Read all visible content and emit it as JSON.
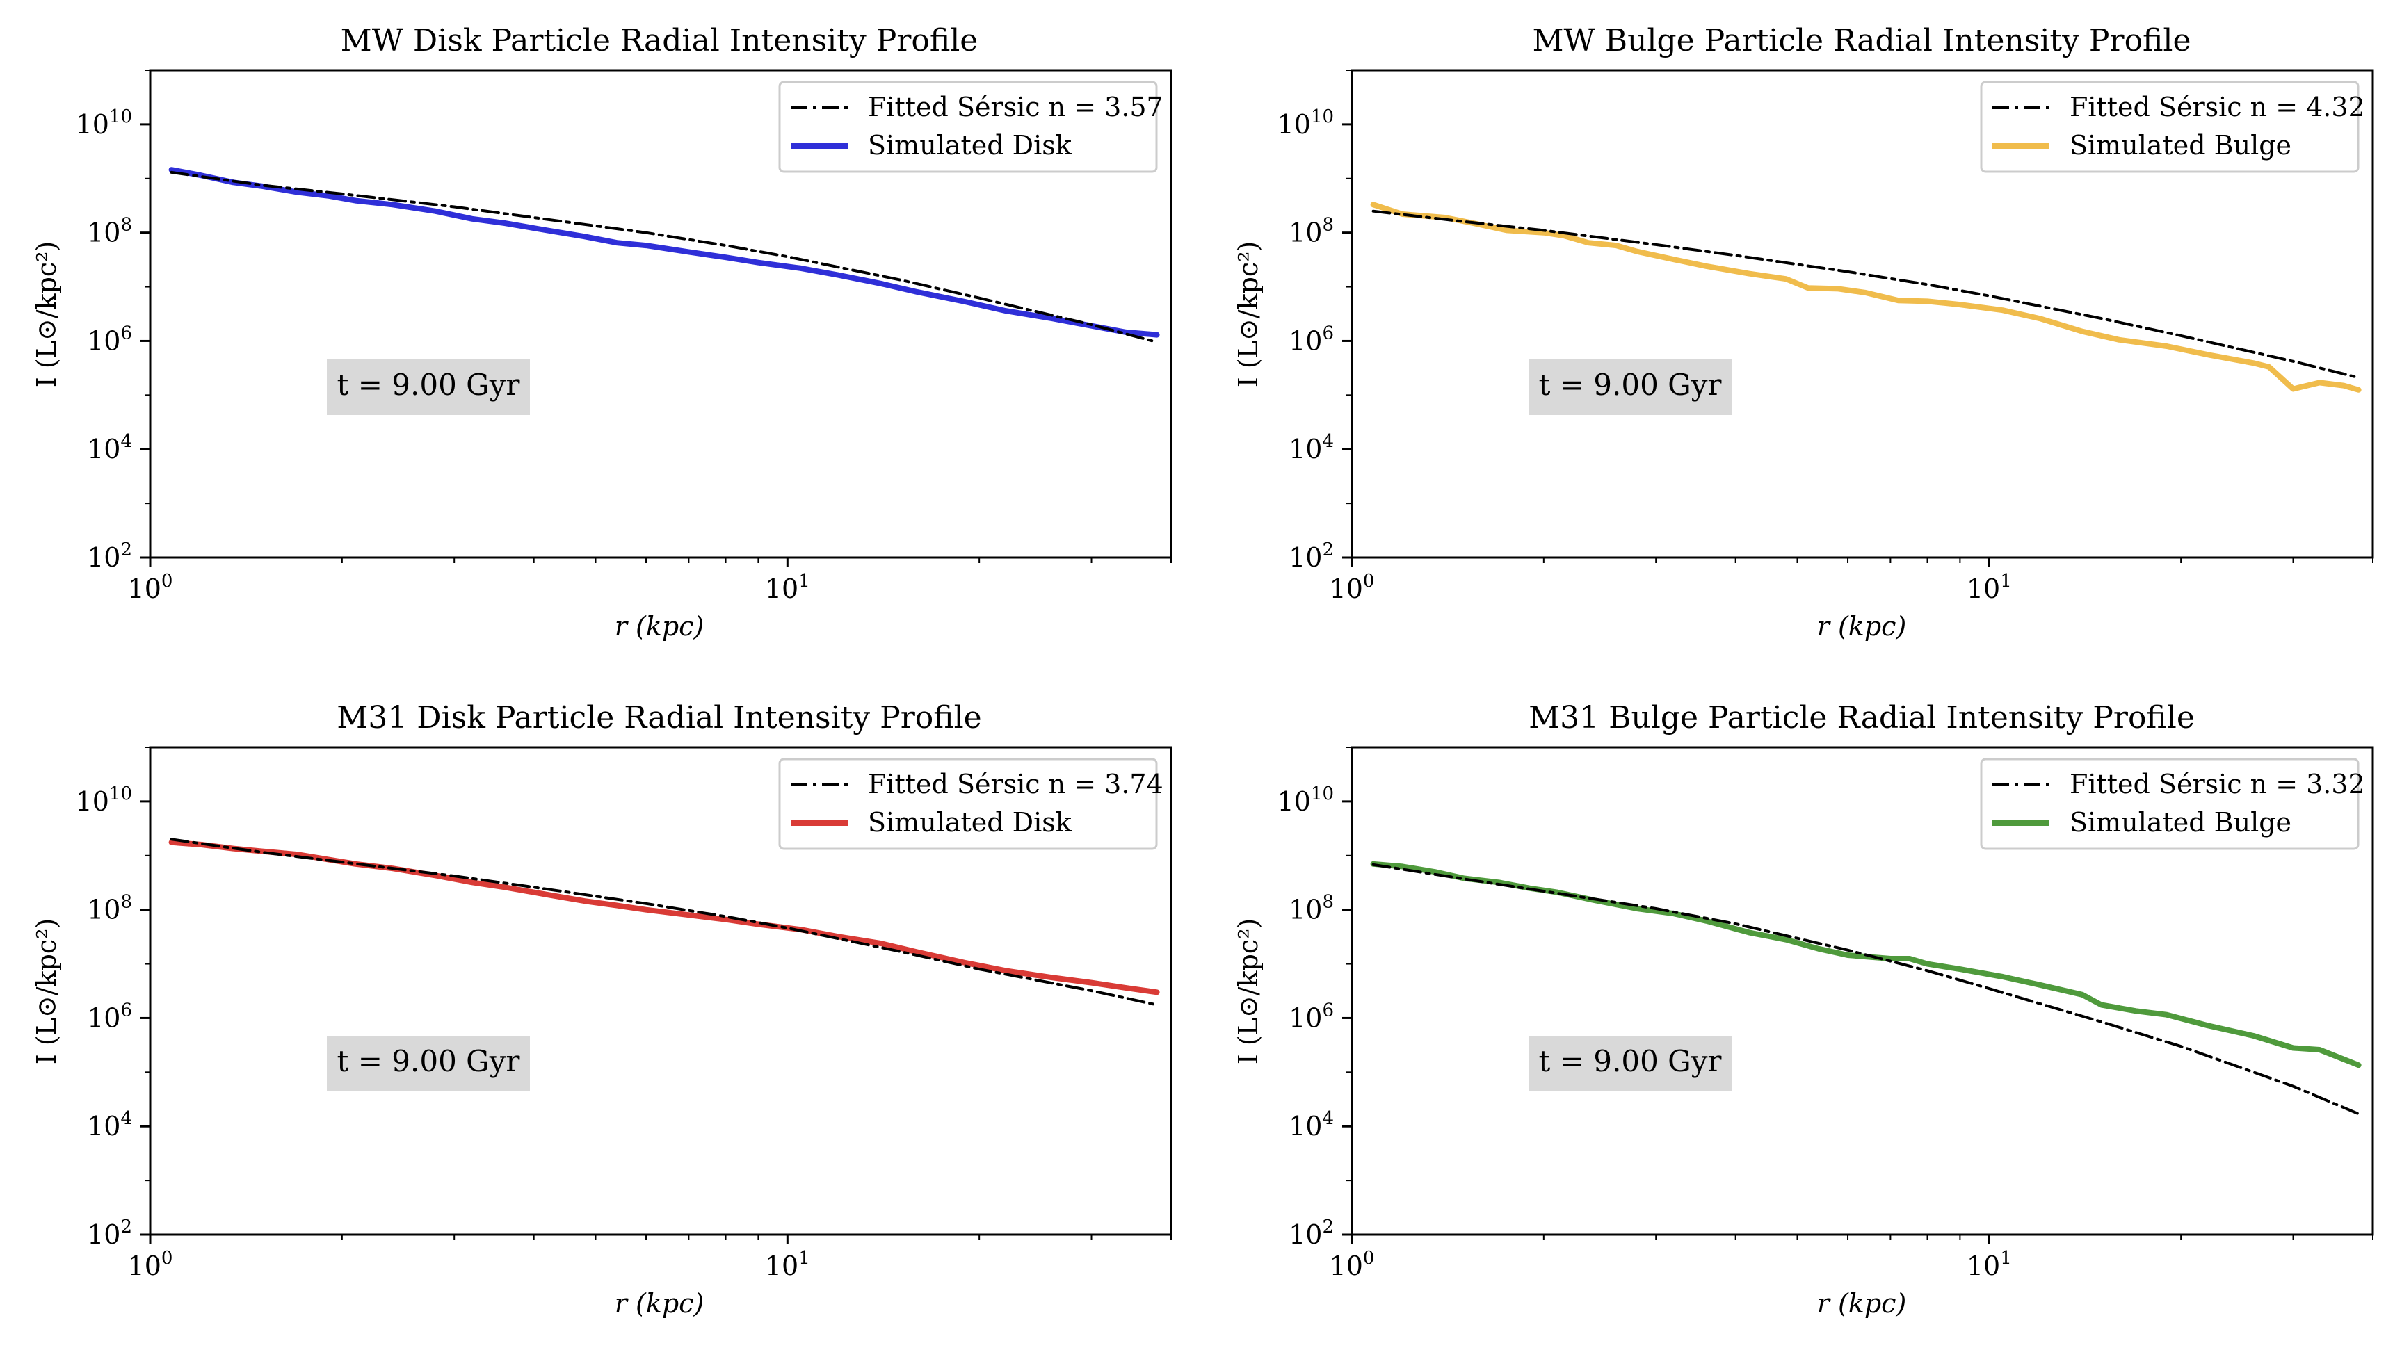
{
  "figure": {
    "background": "#ffffff"
  },
  "chart_data": [
    {
      "type": "line",
      "title": "MW Disk Particle Radial Intensity Profile",
      "xlabel": "r (kpc)",
      "ylabel": "I (L⊙/kpc²)",
      "xscale": "log",
      "yscale": "log",
      "xlim": [
        1,
        40
      ],
      "ylim": [
        100,
        100000000000
      ],
      "xticks": [
        {
          "value": 1,
          "base": "10",
          "exp": "0"
        },
        {
          "value": 10,
          "base": "10",
          "exp": "1"
        }
      ],
      "yticks": [
        {
          "value": 100,
          "base": "10",
          "exp": "2"
        },
        {
          "value": 10000,
          "base": "10",
          "exp": "4"
        },
        {
          "value": 1000000,
          "base": "10",
          "exp": "6"
        },
        {
          "value": 100000000,
          "base": "10",
          "exp": "8"
        },
        {
          "value": 10000000000,
          "base": "10",
          "exp": "10"
        }
      ],
      "grid": false,
      "legend_position": "top-right",
      "annotation": "t = 9.00 Gyr",
      "series": [
        {
          "name": "Fitted Sérsic n = 3.57",
          "style": "dashdot",
          "color": "#000000",
          "x": [
            1.08,
            1.5,
            2,
            3,
            4,
            6,
            8,
            10,
            15,
            20,
            30,
            38
          ],
          "y": [
            1300000000.0,
            750000000.0,
            520000000.0,
            300000000.0,
            190000000.0,
            100000000.0,
            58000000.0,
            36000000.0,
            13500000.0,
            6200000.0,
            2000000.0,
            950000.0
          ]
        },
        {
          "name": "Simulated Disk",
          "style": "solid",
          "color": "#2f2fd8",
          "x": [
            1.08,
            1.2,
            1.35,
            1.5,
            1.7,
            1.9,
            2.1,
            2.4,
            2.8,
            3.2,
            3.6,
            4.2,
            4.8,
            5.4,
            6.0,
            7.0,
            8.0,
            9.0,
            10.5,
            12,
            14,
            16,
            19,
            22,
            26,
            30,
            34,
            38
          ],
          "y": [
            1450000000.0,
            1150000000.0,
            850000000.0,
            720000000.0,
            560000000.0,
            480000000.0,
            390000000.0,
            330000000.0,
            250000000.0,
            180000000.0,
            150000000.0,
            110000000.0,
            85000000.0,
            65000000.0,
            58000000.0,
            44000000.0,
            35000000.0,
            28000000.0,
            22000000.0,
            16500000.0,
            11500000.0,
            8000000.0,
            5300000.0,
            3600000.0,
            2600000.0,
            1900000.0,
            1450000.0,
            1300000.0
          ]
        }
      ]
    },
    {
      "type": "line",
      "title": "MW Bulge Particle Radial Intensity Profile",
      "xlabel": "r (kpc)",
      "ylabel": "I (L⊙/kpc²)",
      "xscale": "log",
      "yscale": "log",
      "xlim": [
        1,
        40
      ],
      "ylim": [
        100,
        100000000000
      ],
      "xticks": [
        {
          "value": 1,
          "base": "10",
          "exp": "0"
        },
        {
          "value": 10,
          "base": "10",
          "exp": "1"
        }
      ],
      "yticks": [
        {
          "value": 100,
          "base": "10",
          "exp": "2"
        },
        {
          "value": 10000,
          "base": "10",
          "exp": "4"
        },
        {
          "value": 1000000,
          "base": "10",
          "exp": "6"
        },
        {
          "value": 100000000,
          "base": "10",
          "exp": "8"
        },
        {
          "value": 10000000000,
          "base": "10",
          "exp": "10"
        }
      ],
      "grid": false,
      "legend_position": "top-right",
      "annotation": "t = 9.00 Gyr",
      "series": [
        {
          "name": "Fitted Sérsic n = 4.32",
          "style": "dashdot",
          "color": "#000000",
          "x": [
            1.08,
            1.5,
            2,
            3,
            4,
            6,
            8,
            10,
            15,
            20,
            30,
            38
          ],
          "y": [
            250000000.0,
            160000000.0,
            110000000.0,
            60000000.0,
            38000000.0,
            19000000.0,
            11000000.0,
            6800000.0,
            2600000.0,
            1250000.0,
            420000.0,
            210000.0
          ]
        },
        {
          "name": "Simulated Bulge",
          "style": "solid",
          "color": "#f0bc4c",
          "x": [
            1.08,
            1.2,
            1.4,
            1.55,
            1.75,
            2.0,
            2.15,
            2.35,
            2.6,
            2.8,
            3.2,
            3.6,
            4.2,
            4.8,
            5.2,
            5.8,
            6.4,
            7.2,
            8.0,
            9.0,
            10.5,
            12,
            14,
            16,
            19,
            22,
            26,
            27.5,
            30,
            33,
            36,
            38
          ],
          "y": [
            330000000.0,
            220000000.0,
            190000000.0,
            150000000.0,
            110000000.0,
            100000000.0,
            88000000.0,
            65000000.0,
            58000000.0,
            45000000.0,
            32000000.0,
            24000000.0,
            17500000.0,
            14000000.0,
            9500000.0,
            9200000.0,
            7800000.0,
            5600000.0,
            5400000.0,
            4700000.0,
            3700000.0,
            2600000.0,
            1500000.0,
            1050000.0,
            800000.0,
            560000.0,
            390000.0,
            330000.0,
            130000.0,
            170000.0,
            150000.0,
            125000.0
          ]
        }
      ]
    },
    {
      "type": "line",
      "title": "M31 Disk Particle Radial Intensity Profile",
      "xlabel": "r (kpc)",
      "ylabel": "I (L⊙/kpc²)",
      "xscale": "log",
      "yscale": "log",
      "xlim": [
        1,
        40
      ],
      "ylim": [
        100,
        100000000000
      ],
      "xticks": [
        {
          "value": 1,
          "base": "10",
          "exp": "0"
        },
        {
          "value": 10,
          "base": "10",
          "exp": "1"
        }
      ],
      "yticks": [
        {
          "value": 100,
          "base": "10",
          "exp": "2"
        },
        {
          "value": 10000,
          "base": "10",
          "exp": "4"
        },
        {
          "value": 1000000,
          "base": "10",
          "exp": "6"
        },
        {
          "value": 100000000,
          "base": "10",
          "exp": "8"
        },
        {
          "value": 10000000000,
          "base": "10",
          "exp": "10"
        }
      ],
      "grid": false,
      "legend_position": "top-right",
      "annotation": "t = 9.00 Gyr",
      "series": [
        {
          "name": "Fitted Sérsic n = 3.74",
          "style": "dashdot",
          "color": "#000000",
          "x": [
            1.08,
            1.5,
            2,
            3,
            4,
            6,
            8,
            10,
            15,
            20,
            30,
            38
          ],
          "y": [
            2000000000.0,
            1150000000.0,
            760000000.0,
            420000000.0,
            260000000.0,
            130000000.0,
            75000000.0,
            46000000.0,
            17000000.0,
            8000000.0,
            3200000.0,
            1750000.0
          ]
        },
        {
          "name": "Simulated Disk",
          "style": "solid",
          "color": "#d93b36",
          "x": [
            1.08,
            1.2,
            1.35,
            1.5,
            1.7,
            1.9,
            2.1,
            2.4,
            2.8,
            3.2,
            3.6,
            4.2,
            4.8,
            5.4,
            6.0,
            7.0,
            8.0,
            9.0,
            10.5,
            12,
            14,
            16,
            19,
            22,
            26,
            30,
            34,
            38
          ],
          "y": [
            1750000000.0,
            1600000000.0,
            1350000000.0,
            1200000000.0,
            1050000000.0,
            850000000.0,
            700000000.0,
            580000000.0,
            430000000.0,
            320000000.0,
            260000000.0,
            190000000.0,
            145000000.0,
            120000000.0,
            100000000.0,
            80000000.0,
            66000000.0,
            54000000.0,
            43000000.0,
            32000000.0,
            24000000.0,
            16500000.0,
            10500000.0,
            7500000.0,
            5600000.0,
            4500000.0,
            3600000.0,
            3000000.0
          ]
        }
      ]
    },
    {
      "type": "line",
      "title": "M31 Bulge Particle Radial Intensity Profile",
      "xlabel": "r (kpc)",
      "ylabel": "I (L⊙/kpc²)",
      "xscale": "log",
      "yscale": "log",
      "xlim": [
        1,
        40
      ],
      "ylim": [
        100,
        100000000000
      ],
      "xticks": [
        {
          "value": 1,
          "base": "10",
          "exp": "0"
        },
        {
          "value": 10,
          "base": "10",
          "exp": "1"
        }
      ],
      "yticks": [
        {
          "value": 100,
          "base": "10",
          "exp": "2"
        },
        {
          "value": 10000,
          "base": "10",
          "exp": "4"
        },
        {
          "value": 1000000,
          "base": "10",
          "exp": "6"
        },
        {
          "value": 100000000,
          "base": "10",
          "exp": "8"
        },
        {
          "value": 10000000000,
          "base": "10",
          "exp": "10"
        }
      ],
      "grid": false,
      "legend_position": "top-right",
      "annotation": "t = 9.00 Gyr",
      "series": [
        {
          "name": "Fitted Sérsic n = 3.32",
          "style": "dashdot",
          "color": "#000000",
          "x": [
            1.08,
            1.5,
            2,
            3,
            4,
            6,
            8,
            10,
            15,
            20,
            30,
            38
          ],
          "y": [
            680000000.0,
            370000000.0,
            220000000.0,
            105000000.0,
            55000000.0,
            18000000.0,
            7500000.0,
            3500000.0,
            850000.0,
            300000.0,
            55000.0,
            17000.0
          ]
        },
        {
          "name": "Simulated Bulge",
          "style": "solid",
          "color": "#4f9a3c",
          "x": [
            1.08,
            1.2,
            1.35,
            1.5,
            1.7,
            1.9,
            2.1,
            2.4,
            2.8,
            3.2,
            3.6,
            4.2,
            4.8,
            5.4,
            6.0,
            7.0,
            7.5,
            8.0,
            9.0,
            10.5,
            12,
            14,
            15,
            17,
            19,
            22,
            26,
            30,
            33,
            38
          ],
          "y": [
            700000000.0,
            630000000.0,
            500000000.0,
            380000000.0,
            320000000.0,
            250000000.0,
            210000000.0,
            150000000.0,
            105000000.0,
            85000000.0,
            62000000.0,
            38000000.0,
            28000000.0,
            19000000.0,
            14500000.0,
            12500000.0,
            12500000.0,
            10000000.0,
            8000000.0,
            5800000.0,
            4100000.0,
            2700000.0,
            1750000.0,
            1350000.0,
            1150000.0,
            730000.0,
            470000.0,
            280000.0,
            260000.0,
            135000.0
          ]
        }
      ]
    }
  ]
}
